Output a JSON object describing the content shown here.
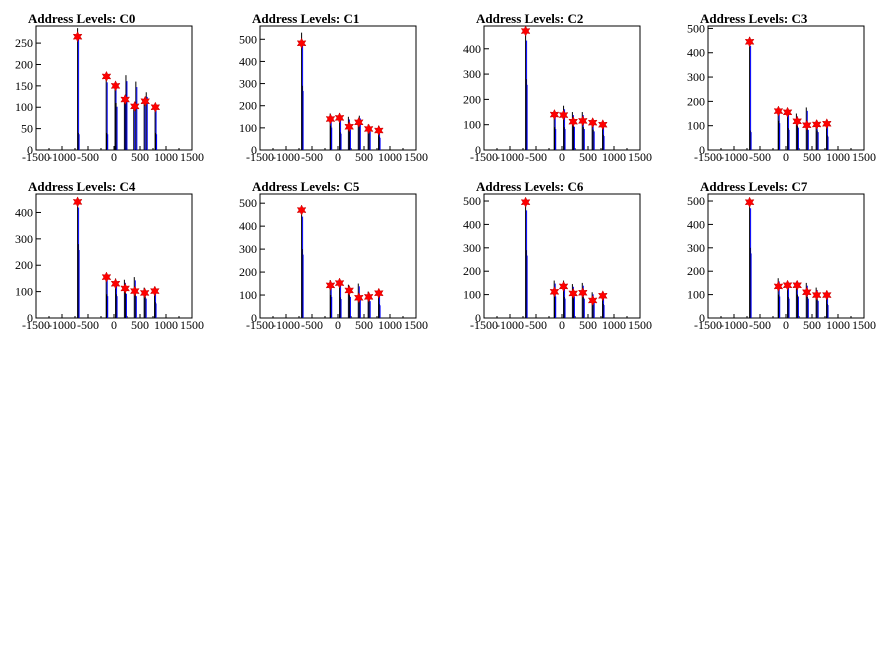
{
  "chart_data": [
    {
      "type": "bar",
      "title": "Address Levels: C0",
      "xlim": [
        -1500,
        1500
      ],
      "ylim": [
        0,
        290
      ],
      "xticks": [
        -1500,
        -1000,
        -500,
        0,
        500,
        1000,
        1500
      ],
      "yticks": [
        0,
        50,
        100,
        150,
        200,
        250
      ],
      "bars": [
        [
          -700,
          285
        ],
        [
          -690,
          40
        ],
        [
          -150,
          172
        ],
        [
          -140,
          40
        ],
        [
          20,
          155
        ],
        [
          40,
          110
        ],
        [
          200,
          120
        ],
        [
          230,
          175
        ],
        [
          380,
          100
        ],
        [
          420,
          160
        ],
        [
          580,
          115
        ],
        [
          620,
          135
        ],
        [
          790,
          100
        ],
        [
          800,
          40
        ]
      ],
      "markers": [
        [
          -700,
          265
        ],
        [
          -145,
          172
        ],
        [
          30,
          150
        ],
        [
          215,
          118
        ],
        [
          400,
          102
        ],
        [
          600,
          114
        ],
        [
          795,
          100
        ]
      ],
      "colors": {
        "bars": "#0000ff",
        "markers": "#ff0000"
      }
    },
    {
      "type": "bar",
      "title": "Address Levels: C1",
      "xlim": [
        -1500,
        1500
      ],
      "ylim": [
        0,
        560
      ],
      "xticks": [
        -1500,
        -1000,
        -500,
        0,
        500,
        1000,
        1500
      ],
      "yticks": [
        0,
        100,
        200,
        300,
        400,
        500
      ],
      "bars": [
        [
          -700,
          530
        ],
        [
          -690,
          290
        ],
        [
          -150,
          165
        ],
        [
          -140,
          110
        ],
        [
          30,
          165
        ],
        [
          40,
          80
        ],
        [
          200,
          150
        ],
        [
          220,
          100
        ],
        [
          390,
          140
        ],
        [
          410,
          155
        ],
        [
          580,
          115
        ],
        [
          600,
          90
        ],
        [
          780,
          110
        ],
        [
          790,
          60
        ]
      ],
      "markers": [
        [
          -700,
          482
        ],
        [
          -145,
          140
        ],
        [
          30,
          145
        ],
        [
          215,
          105
        ],
        [
          400,
          125
        ],
        [
          590,
          95
        ],
        [
          785,
          88
        ]
      ],
      "colors": {
        "bars": "#0000ff",
        "markers": "#ff0000"
      }
    },
    {
      "type": "bar",
      "title": "Address Levels: C2",
      "xlim": [
        -1500,
        1500
      ],
      "ylim": [
        0,
        490
      ],
      "xticks": [
        -1500,
        -1000,
        -500,
        0,
        500,
        1000,
        1500
      ],
      "yticks": [
        0,
        100,
        200,
        300,
        400
      ],
      "bars": [
        [
          -700,
          470
        ],
        [
          -690,
          280
        ],
        [
          -150,
          155
        ],
        [
          -140,
          90
        ],
        [
          30,
          175
        ],
        [
          40,
          90
        ],
        [
          200,
          150
        ],
        [
          220,
          100
        ],
        [
          390,
          150
        ],
        [
          410,
          90
        ],
        [
          580,
          120
        ],
        [
          600,
          80
        ],
        [
          780,
          110
        ],
        [
          790,
          60
        ]
      ],
      "markers": [
        [
          -700,
          470
        ],
        [
          -145,
          140
        ],
        [
          30,
          138
        ],
        [
          215,
          112
        ],
        [
          400,
          115
        ],
        [
          590,
          108
        ],
        [
          785,
          100
        ]
      ],
      "colors": {
        "bars": "#0000ff",
        "markers": "#ff0000"
      }
    },
    {
      "type": "bar",
      "title": "Address Levels: C3",
      "xlim": [
        -1500,
        1500
      ],
      "ylim": [
        0,
        510
      ],
      "xticks": [
        -1500,
        -1000,
        -500,
        0,
        500,
        1000,
        1500
      ],
      "yticks": [
        0,
        100,
        200,
        300,
        400,
        500
      ],
      "bars": [
        [
          -700,
          465
        ],
        [
          -690,
          80
        ],
        [
          -150,
          165
        ],
        [
          -140,
          120
        ],
        [
          30,
          170
        ],
        [
          40,
          90
        ],
        [
          200,
          150
        ],
        [
          220,
          100
        ],
        [
          390,
          175
        ],
        [
          410,
          90
        ],
        [
          580,
          120
        ],
        [
          600,
          80
        ],
        [
          780,
          115
        ],
        [
          790,
          60
        ]
      ],
      "markers": [
        [
          -700,
          445
        ],
        [
          -145,
          160
        ],
        [
          30,
          155
        ],
        [
          215,
          118
        ],
        [
          400,
          102
        ],
        [
          590,
          105
        ],
        [
          785,
          108
        ]
      ],
      "colors": {
        "bars": "#0000ff",
        "markers": "#ff0000"
      }
    },
    {
      "type": "bar",
      "title": "Address Levels: C4",
      "xlim": [
        -1500,
        1500
      ],
      "ylim": [
        0,
        470
      ],
      "xticks": [
        -1500,
        -1000,
        -500,
        0,
        500,
        1000,
        1500
      ],
      "yticks": [
        0,
        100,
        200,
        300,
        400
      ],
      "bars": [
        [
          -700,
          455
        ],
        [
          -690,
          280
        ],
        [
          -150,
          160
        ],
        [
          -140,
          90
        ],
        [
          30,
          150
        ],
        [
          40,
          90
        ],
        [
          200,
          145
        ],
        [
          220,
          100
        ],
        [
          390,
          155
        ],
        [
          410,
          90
        ],
        [
          580,
          115
        ],
        [
          600,
          80
        ],
        [
          780,
          110
        ],
        [
          790,
          60
        ]
      ],
      "markers": [
        [
          -700,
          440
        ],
        [
          -145,
          155
        ],
        [
          30,
          130
        ],
        [
          215,
          112
        ],
        [
          400,
          102
        ],
        [
          590,
          95
        ],
        [
          785,
          102
        ]
      ],
      "colors": {
        "bars": "#0000ff",
        "markers": "#ff0000"
      }
    },
    {
      "type": "bar",
      "title": "Address Levels: C5",
      "xlim": [
        -1500,
        1500
      ],
      "ylim": [
        0,
        540
      ],
      "xticks": [
        -1500,
        -1000,
        -500,
        0,
        500,
        1000,
        1500
      ],
      "yticks": [
        0,
        100,
        200,
        300,
        400,
        500
      ],
      "bars": [
        [
          -700,
          480
        ],
        [
          -690,
          300
        ],
        [
          -150,
          165
        ],
        [
          -140,
          100
        ],
        [
          30,
          165
        ],
        [
          40,
          90
        ],
        [
          200,
          145
        ],
        [
          220,
          100
        ],
        [
          390,
          150
        ],
        [
          410,
          90
        ],
        [
          580,
          115
        ],
        [
          600,
          80
        ],
        [
          780,
          115
        ],
        [
          790,
          60
        ]
      ],
      "markers": [
        [
          -700,
          470
        ],
        [
          -145,
          142
        ],
        [
          30,
          152
        ],
        [
          215,
          120
        ],
        [
          400,
          88
        ],
        [
          590,
          92
        ],
        [
          785,
          108
        ]
      ],
      "colors": {
        "bars": "#0000ff",
        "markers": "#ff0000"
      }
    },
    {
      "type": "bar",
      "title": "Address Levels: C6",
      "xlim": [
        -1500,
        1500
      ],
      "ylim": [
        0,
        530
      ],
      "xticks": [
        -1500,
        -1000,
        -500,
        0,
        500,
        1000,
        1500
      ],
      "yticks": [
        0,
        100,
        200,
        300,
        400,
        500
      ],
      "bars": [
        [
          -700,
          500
        ],
        [
          -690,
          290
        ],
        [
          -150,
          160
        ],
        [
          -140,
          100
        ],
        [
          30,
          160
        ],
        [
          40,
          90
        ],
        [
          200,
          145
        ],
        [
          220,
          100
        ],
        [
          390,
          150
        ],
        [
          410,
          90
        ],
        [
          580,
          110
        ],
        [
          600,
          80
        ],
        [
          780,
          110
        ],
        [
          790,
          60
        ]
      ],
      "markers": [
        [
          -700,
          495
        ],
        [
          -145,
          112
        ],
        [
          30,
          135
        ],
        [
          215,
          105
        ],
        [
          400,
          108
        ],
        [
          590,
          75
        ],
        [
          785,
          95
        ]
      ],
      "colors": {
        "bars": "#0000ff",
        "markers": "#ff0000"
      }
    },
    {
      "type": "bar",
      "title": "Address Levels: C7",
      "xlim": [
        -1500,
        1500
      ],
      "ylim": [
        0,
        530
      ],
      "xticks": [
        -1500,
        -1000,
        -500,
        0,
        500,
        1000,
        1500
      ],
      "yticks": [
        0,
        100,
        200,
        300,
        400,
        500
      ],
      "bars": [
        [
          -700,
          510
        ],
        [
          -690,
          300
        ],
        [
          -150,
          170
        ],
        [
          -140,
          100
        ],
        [
          30,
          155
        ],
        [
          40,
          90
        ],
        [
          200,
          155
        ],
        [
          220,
          100
        ],
        [
          390,
          150
        ],
        [
          410,
          90
        ],
        [
          580,
          130
        ],
        [
          600,
          80
        ],
        [
          780,
          115
        ],
        [
          790,
          60
        ]
      ],
      "markers": [
        [
          -700,
          495
        ],
        [
          -145,
          135
        ],
        [
          30,
          140
        ],
        [
          215,
          140
        ],
        [
          400,
          110
        ],
        [
          590,
          98
        ],
        [
          785,
          98
        ]
      ],
      "colors": {
        "bars": "#0000ff",
        "markers": "#ff0000"
      }
    }
  ]
}
